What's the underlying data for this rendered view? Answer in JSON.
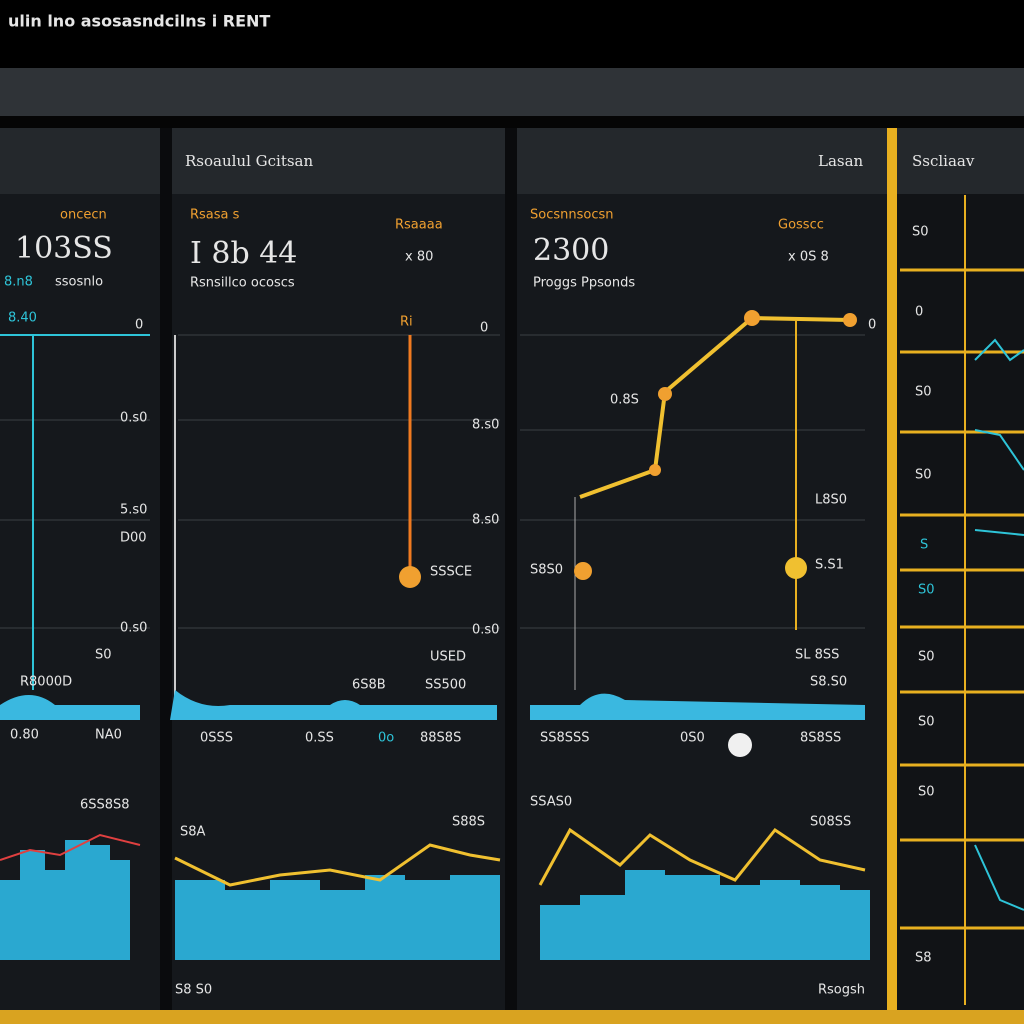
{
  "header": {
    "title": "ulin lno asosasndcilns i RENT"
  },
  "panels": [
    {
      "title": null,
      "labels": [
        "oncecn",
        "103SS",
        "8.n8",
        "ssosnlo",
        "8.40",
        "0",
        "0.s0",
        "5.s0",
        "D00",
        "0.s0",
        "S0",
        "R8000D",
        "0.80",
        "NA0",
        "6SS8S8"
      ]
    },
    {
      "title": "Rsoaulul Gcitsan",
      "labels": [
        "Rsasa s",
        "Rsaaaa",
        "I 8b 44",
        "x 80",
        "Rsnsillco ocoscs",
        "Ri",
        "0",
        "8.s0",
        "8.s0",
        "SSSCE",
        "0.s0",
        "USED",
        "6S8B",
        "SS500",
        "0SSS",
        "0.SS",
        "0o",
        "88S8S",
        "S88S",
        "S8A",
        "S8 S0"
      ]
    },
    {
      "title": "Lasan",
      "labels": [
        "Socsnnsocsn",
        "Gosscc",
        "2300",
        "x 0S 8",
        "Proggs Ppsonds",
        "0",
        "0.8S",
        "L8S0",
        "S8S0",
        "S.S1",
        "SL 8SS",
        "S8.S0",
        "SS8SSS",
        "0S0",
        "8S8SS",
        "SSAS0",
        "S08SS",
        "Rsogsh"
      ]
    },
    {
      "title": "Sscliaav",
      "labels": [
        "S0",
        "0",
        "S0",
        "S0",
        "S",
        "S0",
        "S0",
        "S0",
        "S0",
        "S8"
      ]
    }
  ]
}
